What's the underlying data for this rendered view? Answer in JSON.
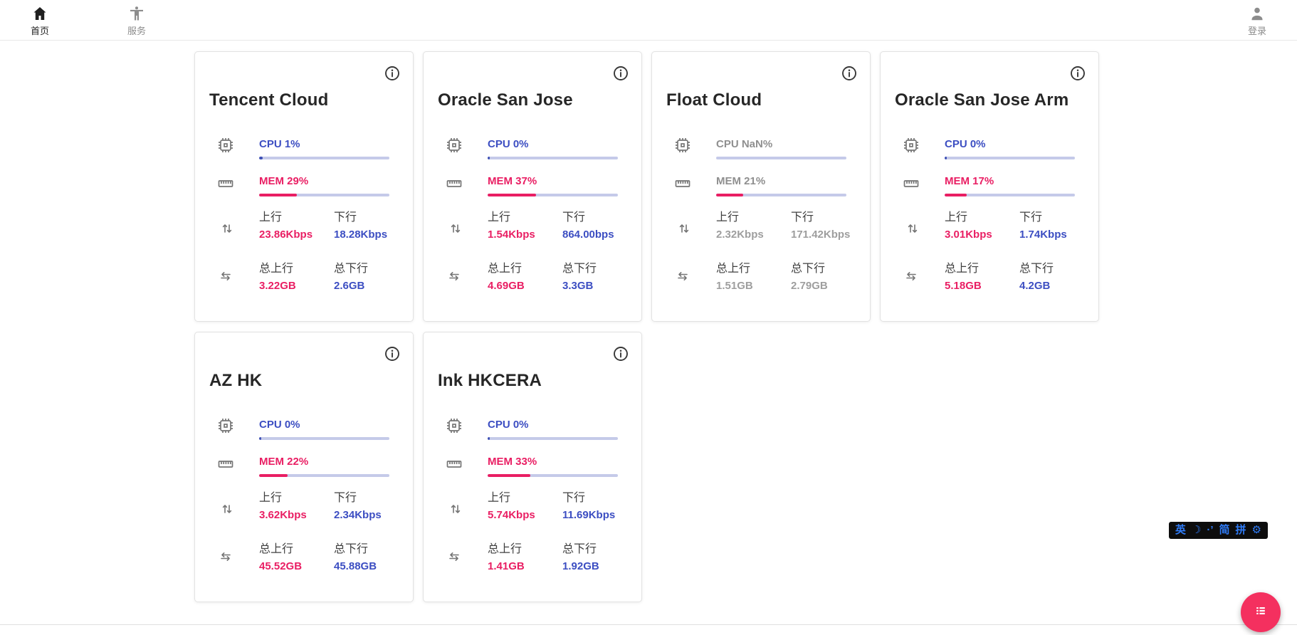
{
  "navbar": {
    "home": {
      "label": "首页"
    },
    "services": {
      "label": "服务"
    },
    "login": {
      "label": "登录"
    }
  },
  "labels": {
    "up": "上行",
    "down": "下行",
    "total_up": "总上行",
    "total_down": "总下行"
  },
  "servers": [
    {
      "name": "Tencent Cloud",
      "cpu_text": "CPU 1%",
      "cpu_pct": 1,
      "mem_text": "MEM 29%",
      "mem_pct": 29,
      "up": "23.86Kbps",
      "down": "18.28Kbps",
      "total_up": "3.22GB",
      "total_down": "2.6GB",
      "offline": false
    },
    {
      "name": "Oracle San Jose",
      "cpu_text": "CPU 0%",
      "cpu_pct": 0,
      "mem_text": "MEM 37%",
      "mem_pct": 37,
      "up": "1.54Kbps",
      "down": "864.00bps",
      "total_up": "4.69GB",
      "total_down": "3.3GB",
      "offline": false
    },
    {
      "name": "Float Cloud",
      "cpu_text": "CPU NaN%",
      "cpu_pct": null,
      "mem_text": "MEM 21%",
      "mem_pct": 21,
      "up": "2.32Kbps",
      "down": "171.42Kbps",
      "total_up": "1.51GB",
      "total_down": "2.79GB",
      "offline": true
    },
    {
      "name": "Oracle San Jose Arm",
      "cpu_text": "CPU 0%",
      "cpu_pct": 0,
      "mem_text": "MEM 17%",
      "mem_pct": 17,
      "up": "3.01Kbps",
      "down": "1.74Kbps",
      "total_up": "5.18GB",
      "total_down": "4.2GB",
      "offline": false
    },
    {
      "name": "AZ HK",
      "cpu_text": "CPU 0%",
      "cpu_pct": 0,
      "mem_text": "MEM 22%",
      "mem_pct": 22,
      "up": "3.62Kbps",
      "down": "2.34Kbps",
      "total_up": "45.52GB",
      "total_down": "45.88GB",
      "offline": false
    },
    {
      "name": "Ink HKCERA",
      "cpu_text": "CPU 0%",
      "cpu_pct": 0,
      "mem_text": "MEM 33%",
      "mem_pct": 33,
      "up": "5.74Kbps",
      "down": "11.69Kbps",
      "total_up": "1.41GB",
      "total_down": "1.92GB",
      "offline": false
    }
  ],
  "ime_toolbar": {
    "items": [
      {
        "name": "lang-english",
        "glyph": "英"
      },
      {
        "name": "moon-icon",
        "glyph": "☽"
      },
      {
        "name": "punctuation-mode",
        "glyph": "·’"
      },
      {
        "name": "simplified-chinese",
        "glyph": "简"
      },
      {
        "name": "pinyin-mode",
        "glyph": "拼"
      },
      {
        "name": "settings-gear-icon",
        "glyph": "⚙"
      }
    ]
  },
  "colors": {
    "accent_blue": "#3c4ec2",
    "accent_pink": "#e91e63",
    "bar_track": "#c5cae9",
    "bar_blue_fill": "#3f51b5",
    "offline_gray": "#9e9e9e",
    "fab_pink": "#f4305f",
    "ime_blue": "#2f7bf6"
  }
}
